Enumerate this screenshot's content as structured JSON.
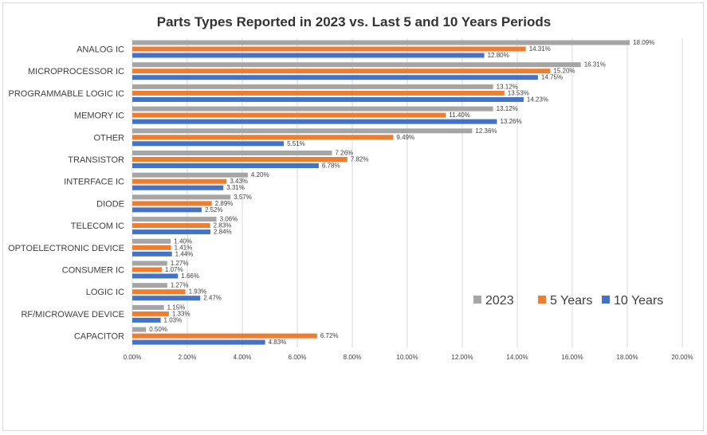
{
  "chart_data": {
    "type": "bar",
    "orientation": "horizontal",
    "title": "Parts Types Reported in 2023 vs. Last 5 and 10 Years Periods",
    "xlabel": "",
    "ylabel": "",
    "xlim": [
      0,
      20
    ],
    "x_ticks": [
      "0.00%",
      "2.00%",
      "4.00%",
      "6.00%",
      "8.00%",
      "10.00%",
      "12.00%",
      "14.00%",
      "16.00%",
      "18.00%",
      "20.00%"
    ],
    "grid": true,
    "legend_position": "bottom-right",
    "categories": [
      "ANALOG IC",
      "MICROPROCESSOR IC",
      "PROGRAMMABLE LOGIC IC",
      "MEMORY IC",
      "OTHER",
      "TRANSISTOR",
      "INTERFACE IC",
      "DIODE",
      "TELECOM IC",
      "OPTOELECTRONIC DEVICE",
      "CONSUMER IC",
      "LOGIC IC",
      "RF/MICROWAVE DEVICE",
      "CAPACITOR"
    ],
    "series": [
      {
        "name": "2023",
        "color": "#a5a5a5",
        "values": [
          18.09,
          16.31,
          13.12,
          13.12,
          12.36,
          7.26,
          4.2,
          3.57,
          3.06,
          1.4,
          1.27,
          1.27,
          1.15,
          0.5
        ],
        "labels": [
          "18.09%",
          "16.31%",
          "13.12%",
          "13.12%",
          "12.36%",
          "7.26%",
          "4.20%",
          "3.57%",
          "3.06%",
          "1.40%",
          "1.27%",
          "1.27%",
          "1.15%",
          "0.50%"
        ]
      },
      {
        "name": "5 Years",
        "color": "#ed7d31",
        "values": [
          14.31,
          15.2,
          13.53,
          11.4,
          9.49,
          7.82,
          3.43,
          2.89,
          2.83,
          1.41,
          1.07,
          1.93,
          1.33,
          6.72
        ],
        "labels": [
          "14.31%",
          "15.20%",
          "13.53%",
          "11.40%",
          "9.49%",
          "7.82%",
          "3.43%",
          "2.89%",
          "2.83%",
          "1.41%",
          "1.07%",
          "1.93%",
          "1.33%",
          "6.72%"
        ]
      },
      {
        "name": "10 Years",
        "color": "#4472c4",
        "values": [
          12.8,
          14.75,
          14.23,
          13.26,
          5.51,
          6.78,
          3.31,
          2.52,
          2.84,
          1.44,
          1.66,
          2.47,
          1.03,
          4.83
        ],
        "labels": [
          "12.80%",
          "14.75%",
          "14.23%",
          "13.26%",
          "5.51%",
          "6.78%",
          "3.31%",
          "2.52%",
          "2.84%",
          "1.44%",
          "1.66%",
          "2.47%",
          "1.03%",
          "4.83%"
        ]
      }
    ]
  }
}
